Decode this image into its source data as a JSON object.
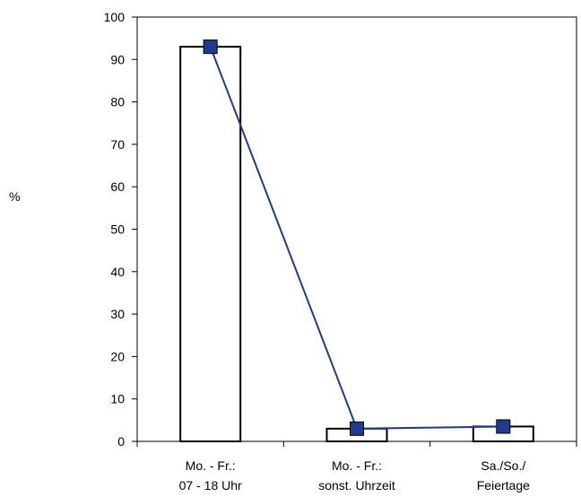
{
  "chart_data": {
    "type": "bar",
    "ylabel": "%",
    "ylim": [
      0,
      100
    ],
    "yticks": [
      0,
      10,
      20,
      30,
      40,
      50,
      60,
      70,
      80,
      90,
      100
    ],
    "categories": [
      [
        "Mo. - Fr.:",
        "07 - 18 Uhr"
      ],
      [
        "Mo. - Fr.:",
        "sonst. Uhrzeit"
      ],
      [
        "Sa./So./",
        "Feiertage"
      ]
    ],
    "series": [
      {
        "type": "bar",
        "values": [
          93,
          3,
          3.5
        ],
        "color": "#ffffff",
        "stroke": "#000000"
      },
      {
        "type": "line",
        "values": [
          93,
          3,
          3.5
        ],
        "color": "#1f3a8f",
        "marker": "square"
      }
    ],
    "grid": false,
    "legend": "none"
  }
}
